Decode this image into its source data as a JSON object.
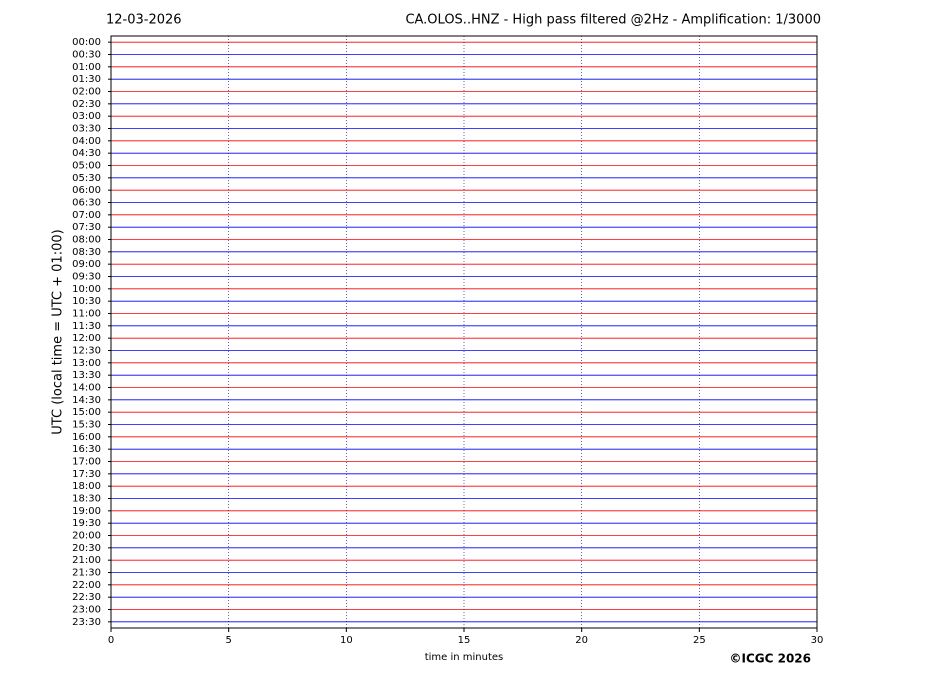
{
  "chart_data": {
    "type": "helicorder",
    "date": "12-03-2026",
    "title": "CA.OLOS..HNZ - High pass filtered @2Hz - Amplification: 1/3000",
    "ylabel": "UTC (local time = UTC + 01:00)",
    "xlabel": "time in minutes",
    "copyright": "©ICGC 2026",
    "categories": [
      "00:00",
      "00:30",
      "01:00",
      "01:30",
      "02:00",
      "02:30",
      "03:00",
      "03:30",
      "04:00",
      "04:30",
      "05:00",
      "05:30",
      "06:00",
      "06:30",
      "07:00",
      "07:30",
      "08:00",
      "08:30",
      "09:00",
      "09:30",
      "10:00",
      "10:30",
      "11:00",
      "11:30",
      "12:00",
      "12:30",
      "13:00",
      "13:30",
      "14:00",
      "14:30",
      "15:00",
      "15:30",
      "16:00",
      "16:30",
      "17:00",
      "17:30",
      "18:00",
      "18:30",
      "19:00",
      "19:30",
      "20:00",
      "20:30",
      "21:00",
      "21:30",
      "22:00",
      "22:30",
      "23:00",
      "23:30"
    ],
    "trace_colors": [
      "#ff0000",
      "#0000ff"
    ],
    "xlim": [
      0,
      30
    ],
    "xticks": [
      0,
      5,
      10,
      15,
      20,
      25,
      30
    ],
    "grid": true
  }
}
